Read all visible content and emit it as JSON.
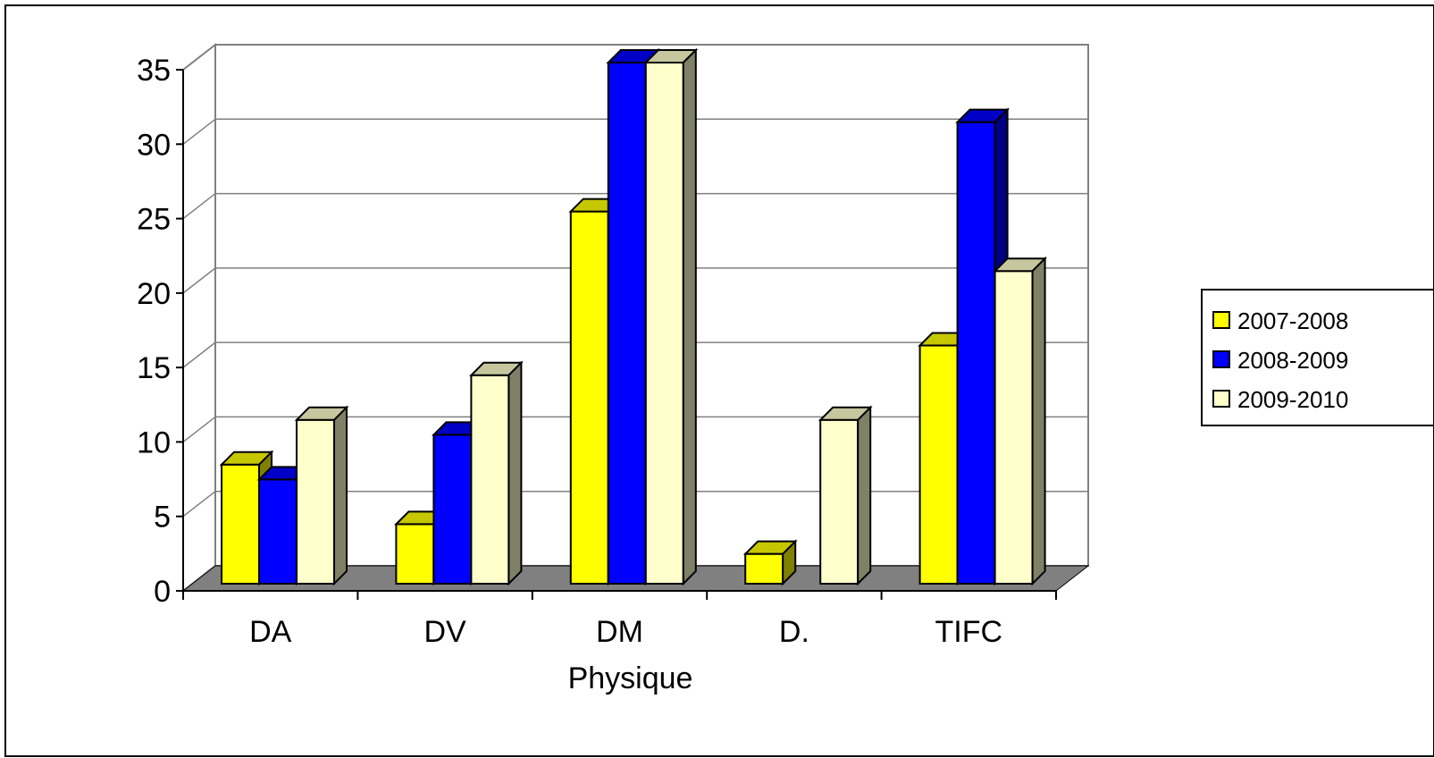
{
  "chart_data": {
    "type": "bar",
    "title": "",
    "xlabel": "Physique",
    "ylabel": "",
    "ylim": [
      0,
      35
    ],
    "yticks": [
      "0",
      "5",
      "10",
      "15",
      "20",
      "25",
      "30",
      "35"
    ],
    "grid": true,
    "legend_position": "right",
    "categories": [
      "DA",
      "DV",
      "DM",
      "D.",
      "TIFC"
    ],
    "series": [
      {
        "name": "2007-2008",
        "color": "#ffff00",
        "values": [
          8,
          4,
          25,
          2,
          16
        ]
      },
      {
        "name": "2008-2009",
        "color": "#0000ff",
        "values": [
          7,
          10,
          35,
          null,
          31
        ]
      },
      {
        "name": "2009-2010",
        "color": "#ffffcc",
        "values": [
          11,
          14,
          35,
          11,
          21
        ]
      }
    ]
  }
}
